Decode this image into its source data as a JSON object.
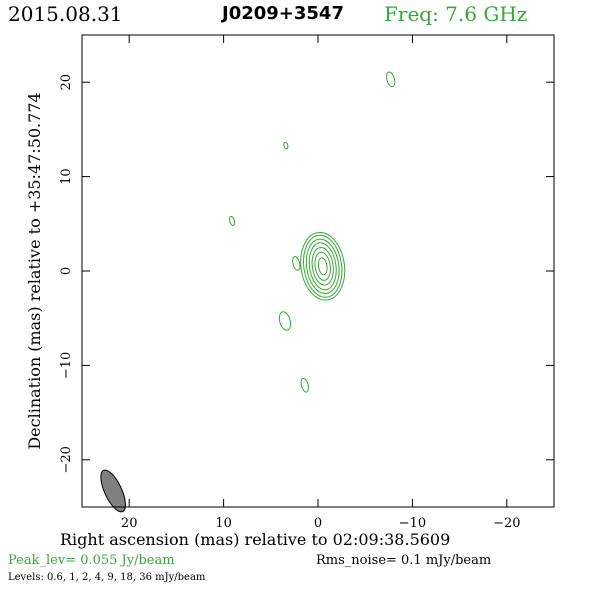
{
  "header": {
    "date": "2015.08.31",
    "source": "J0209+3547",
    "freq": "Freq: 7.6 GHz"
  },
  "footer": {
    "xlabel": "Right ascension (mas) relative to 02:09:38.5609",
    "peak": "Peak_lev=  0.055 Jy/beam",
    "rms": "Rms_noise=  0.1 mJy/beam",
    "levels": "Levels: 0.6,    1,    2,    4,    9,   18,   36 mJy/beam"
  },
  "chart_data": {
    "type": "contour",
    "ylabel": "Declination (mas) relative to +35:47:50.774",
    "xlim": [
      25,
      -25
    ],
    "ylim": [
      -25,
      25
    ],
    "xticks": [
      20,
      10,
      0,
      -10,
      -20
    ],
    "yticks": [
      20,
      10,
      0,
      -10,
      -20
    ],
    "contour_levels_mJy": [
      0.6,
      1,
      2,
      4,
      9,
      18,
      36
    ],
    "core": {
      "x": -0.5,
      "y": 0.5,
      "levels": [
        {
          "rx": 2.3,
          "ry": 3.6
        },
        {
          "rx": 2.0,
          "ry": 3.3
        },
        {
          "rx": 1.7,
          "ry": 2.9
        },
        {
          "rx": 1.4,
          "ry": 2.5
        },
        {
          "rx": 1.1,
          "ry": 2.0
        },
        {
          "rx": 0.8,
          "ry": 1.5
        },
        {
          "rx": 0.45,
          "ry": 0.9
        }
      ]
    },
    "components": [
      {
        "x": -7.7,
        "y": 20.3,
        "rx": 0.4,
        "ry": 0.8
      },
      {
        "x": 3.4,
        "y": 13.3,
        "rx": 0.2,
        "ry": 0.35
      },
      {
        "x": 9.1,
        "y": 5.3,
        "rx": 0.25,
        "ry": 0.5
      },
      {
        "x": 2.3,
        "y": 0.8,
        "rx": 0.35,
        "ry": 0.75
      },
      {
        "x": 3.5,
        "y": -5.3,
        "rx": 0.55,
        "ry": 1.0
      },
      {
        "x": 1.4,
        "y": -12.1,
        "rx": 0.35,
        "ry": 0.75
      }
    ],
    "beam": {
      "x": 21.7,
      "y": -23.3,
      "major": 2.4,
      "minor": 0.9,
      "pa": -25
    },
    "colors": {
      "contour": "#3aa53a",
      "beam": "#808080",
      "axes": "#000000"
    }
  }
}
